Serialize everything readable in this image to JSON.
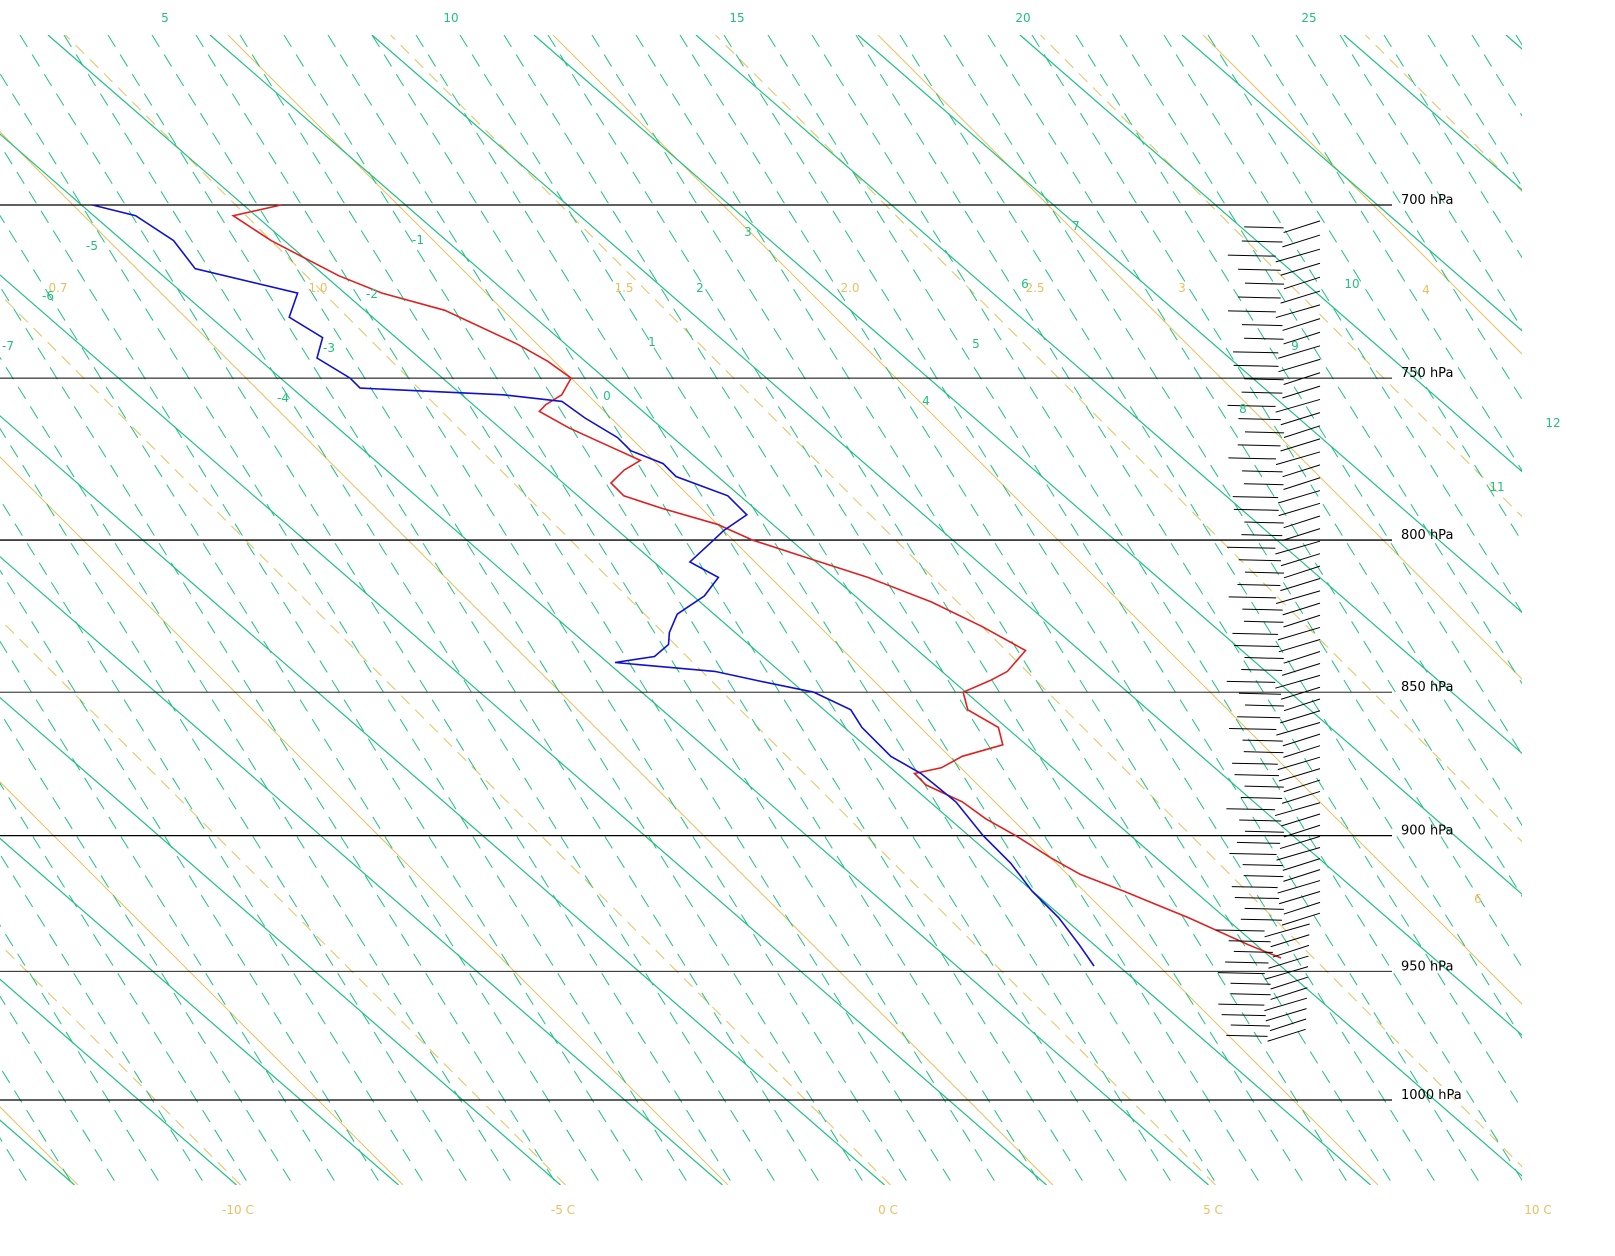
{
  "chart_data": {
    "type": "line",
    "title": "",
    "xlabel": "",
    "ylabel": "",
    "pressure_levels": [
      {
        "p": 700,
        "label": "700 hPa"
      },
      {
        "p": 750,
        "label": "750 hPa"
      },
      {
        "p": 800,
        "label": "800 hPa"
      },
      {
        "p": 850,
        "label": "850 hPa"
      },
      {
        "p": 900,
        "label": "900 hPa"
      },
      {
        "p": 950,
        "label": "950 hPa"
      },
      {
        "p": 1000,
        "label": "1000 hPa"
      }
    ],
    "temperature_ticks": [
      {
        "t": -10,
        "label": "-10 C"
      },
      {
        "t": -5,
        "label": "-5 C"
      },
      {
        "t": 0,
        "label": "0 C"
      },
      {
        "t": 5,
        "label": "5 C"
      },
      {
        "t": 10,
        "label": "10 C"
      }
    ],
    "top_labels": [
      "5",
      "10",
      "15",
      "20",
      "25"
    ],
    "mixing_ratio_labels": [
      "0.7",
      "1.0",
      "1.5",
      "2.0",
      "2.5",
      "3",
      "4",
      "6"
    ],
    "theta_e_labels": [
      "-7",
      "-6",
      "-5",
      "-4",
      "-3",
      "-2",
      "-1",
      "0",
      "1",
      "2",
      "3",
      "4",
      "5",
      "6",
      "7",
      "8",
      "9",
      "10",
      "11",
      "12"
    ],
    "series": [
      {
        "color": "#e02020",
        "points": [
          [
            700,
            3.2
          ],
          [
            703,
            2.3
          ],
          [
            710,
            2.5
          ],
          [
            720,
            3.0
          ],
          [
            725,
            3.4
          ],
          [
            730,
            4.1
          ],
          [
            740,
            4.7
          ],
          [
            745,
            4.9
          ],
          [
            750,
            5.0
          ],
          [
            755,
            4.6
          ],
          [
            758,
            4.2
          ],
          [
            760,
            4.0
          ],
          [
            765,
            4.2
          ],
          [
            770,
            4.5
          ],
          [
            775,
            4.8
          ],
          [
            778,
            4.4
          ],
          [
            782,
            4.0
          ],
          [
            786,
            4.0
          ],
          [
            790,
            4.4
          ],
          [
            795,
            5.0
          ],
          [
            800,
            5.3
          ],
          [
            805,
            5.8
          ],
          [
            812,
            6.5
          ],
          [
            820,
            7.1
          ],
          [
            828,
            7.5
          ],
          [
            836,
            7.8
          ],
          [
            843,
            7.2
          ],
          [
            846,
            6.8
          ],
          [
            850,
            6.2
          ],
          [
            856,
            6.0
          ],
          [
            862,
            6.2
          ],
          [
            868,
            6.0
          ],
          [
            872,
            5.2
          ],
          [
            876,
            4.7
          ],
          [
            878,
            4.2
          ],
          [
            882,
            4.2
          ],
          [
            888,
            4.5
          ],
          [
            894,
            4.6
          ],
          [
            900,
            4.8
          ],
          [
            908,
            5.0
          ],
          [
            914,
            5.2
          ],
          [
            920,
            5.6
          ],
          [
            930,
            6.2
          ],
          [
            940,
            6.7
          ],
          [
            945,
            7.0
          ]
        ]
      },
      {
        "color": "#1010d0",
        "points": [
          [
            700,
            0.3
          ],
          [
            703,
            0.8
          ],
          [
            710,
            1.0
          ],
          [
            718,
            0.9
          ],
          [
            725,
            2.1
          ],
          [
            732,
            1.6
          ],
          [
            738,
            1.8
          ],
          [
            744,
            1.4
          ],
          [
            750,
            1.6
          ],
          [
            753,
            1.6
          ],
          [
            755,
            3.7
          ],
          [
            757,
            4.5
          ],
          [
            762,
            4.6
          ],
          [
            768,
            4.8
          ],
          [
            772,
            4.8
          ],
          [
            776,
            5.1
          ],
          [
            780,
            5.1
          ],
          [
            786,
            5.6
          ],
          [
            792,
            5.6
          ],
          [
            797,
            5.0
          ],
          [
            800,
            4.7
          ],
          [
            807,
            4.0
          ],
          [
            812,
            4.2
          ],
          [
            818,
            3.7
          ],
          [
            824,
            3.0
          ],
          [
            830,
            2.6
          ],
          [
            834,
            2.4
          ],
          [
            838,
            2.0
          ],
          [
            840,
            1.3
          ],
          [
            843,
            2.7
          ],
          [
            846,
            3.2
          ],
          [
            850,
            3.9
          ],
          [
            856,
            4.2
          ],
          [
            862,
            4.1
          ],
          [
            868,
            4.1
          ],
          [
            872,
            4.1
          ],
          [
            878,
            4.3
          ],
          [
            888,
            4.4
          ],
          [
            900,
            4.3
          ],
          [
            910,
            4.3
          ],
          [
            920,
            4.2
          ],
          [
            930,
            4.2
          ],
          [
            940,
            4.1
          ],
          [
            948,
            4.0
          ]
        ]
      }
    ],
    "ylim": [
      1000,
      700
    ],
    "xlim": [
      -12,
      10
    ],
    "grid": true,
    "wind_barbs": true,
    "colors": {
      "isobar": "#000000",
      "isotherm": "#e8c060",
      "dry_adiabat": "#20c080",
      "mixing_ratio": "#20c080",
      "temperature": "#e02020",
      "dewpoint": "#1010d0",
      "wind_barb": "#000000"
    }
  }
}
